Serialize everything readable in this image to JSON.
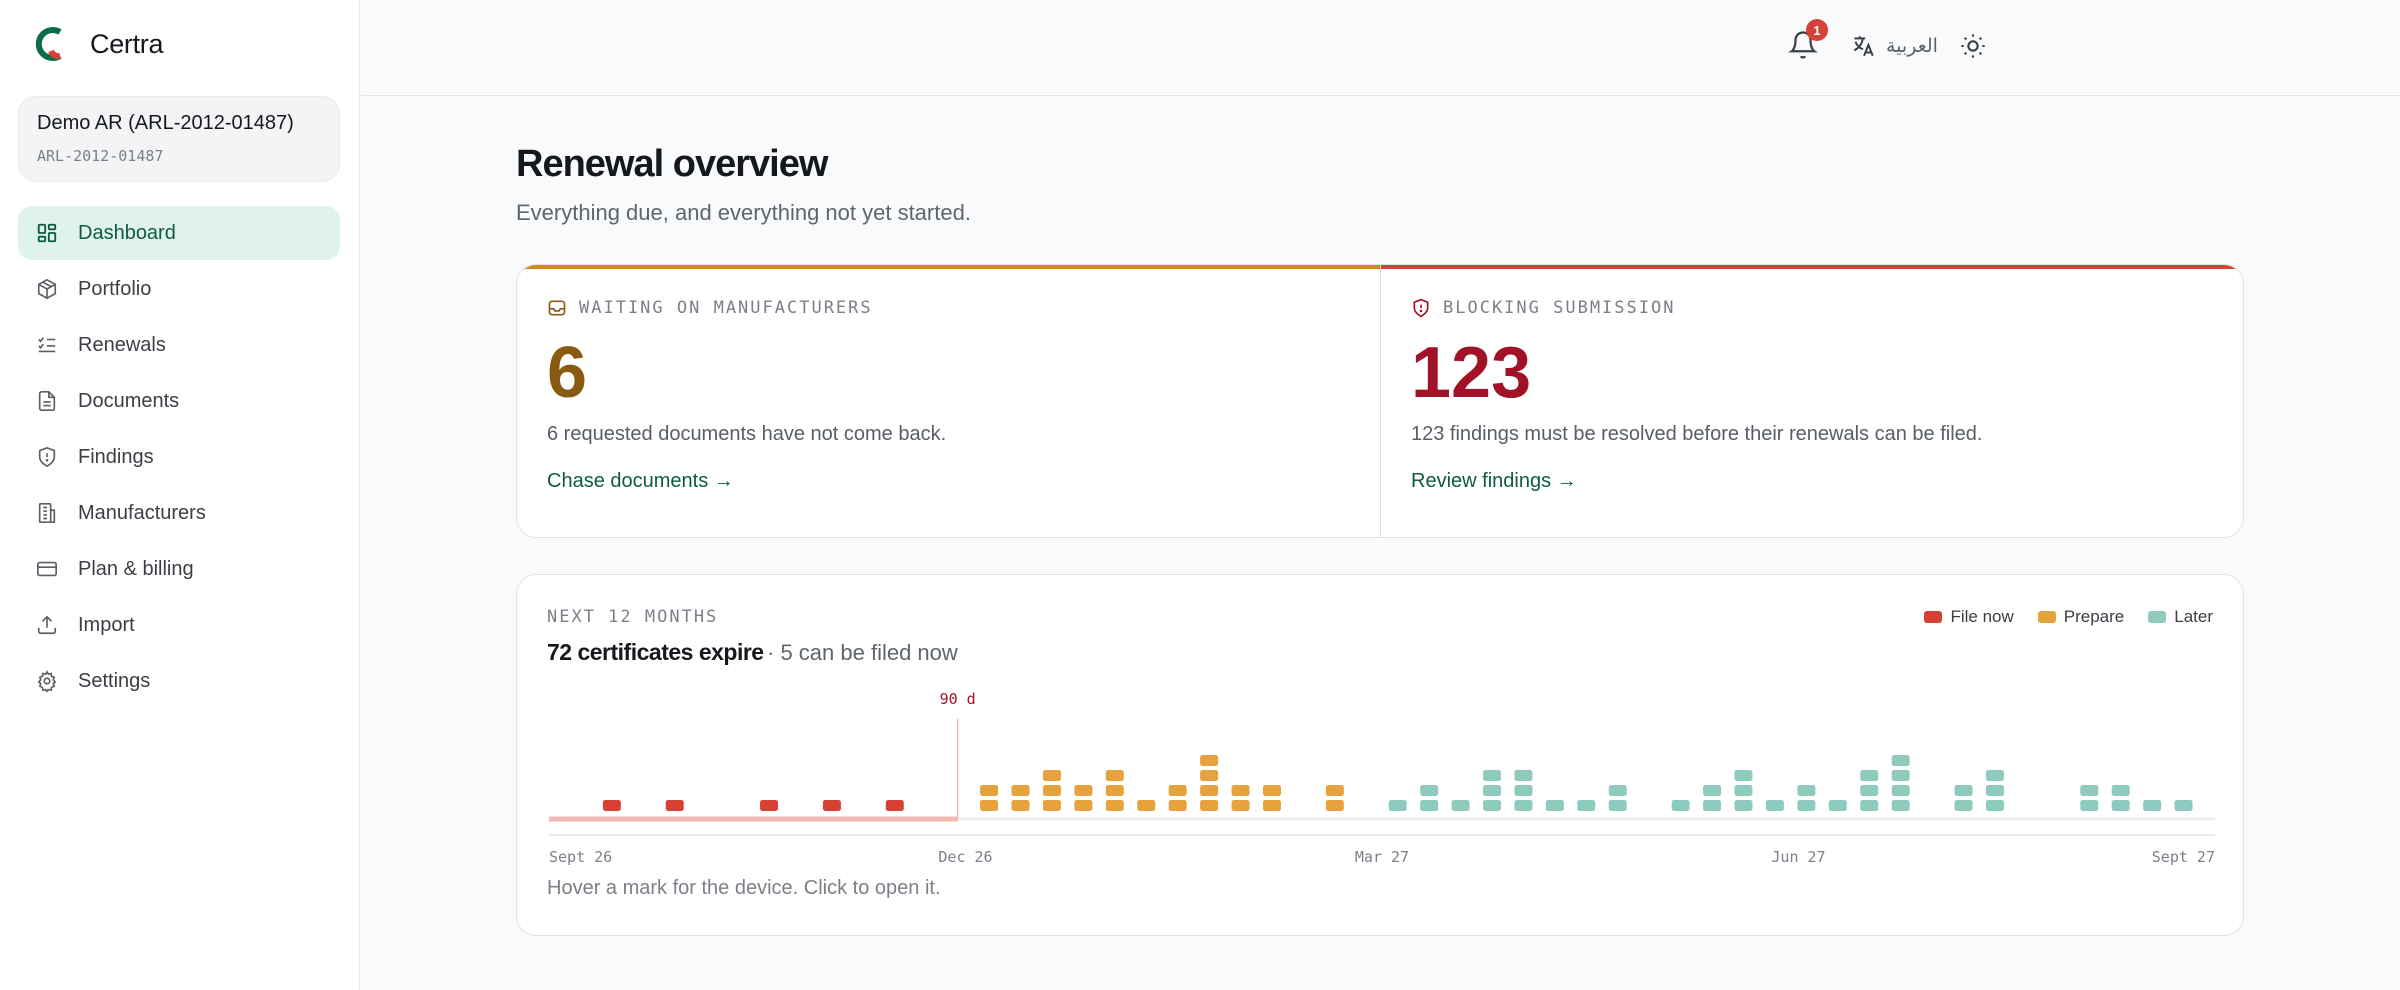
{
  "brand": {
    "name": "Certra"
  },
  "org": {
    "name": "Demo AR (ARL-2012-01487)",
    "code": "ARL-2012-01487"
  },
  "nav": [
    {
      "label": "Dashboard",
      "icon": "dashboard-icon",
      "active": true
    },
    {
      "label": "Portfolio",
      "icon": "box-icon"
    },
    {
      "label": "Renewals",
      "icon": "checklist-icon"
    },
    {
      "label": "Documents",
      "icon": "document-icon"
    },
    {
      "label": "Findings",
      "icon": "shield-icon"
    },
    {
      "label": "Manufacturers",
      "icon": "building-icon"
    },
    {
      "label": "Plan & billing",
      "icon": "credit-card-icon"
    },
    {
      "label": "Import",
      "icon": "upload-icon"
    },
    {
      "label": "Settings",
      "icon": "gear-icon"
    }
  ],
  "topbar": {
    "notifications_count": "1",
    "language_label": "العربية"
  },
  "page": {
    "title": "Renewal overview",
    "subtitle": "Everything due, and everything not yet started."
  },
  "kpis": {
    "waiting": {
      "label": "WAITING ON MANUFACTURERS",
      "value": "6",
      "description": "6 requested documents have not come back.",
      "link": "Chase documents →",
      "color": "#8a5a12",
      "bar_color": "#d4891c"
    },
    "blocking": {
      "label": "BLOCKING SUBMISSION",
      "value": "123",
      "description": "123 findings must be resolved before their renewals can be filed.",
      "link": "Review findings →",
      "color": "#a11226",
      "bar_color": "#d64136"
    }
  },
  "timeline": {
    "eyebrow": "NEXT 12 MONTHS",
    "title": "72 certificates expire",
    "subtitle": "· 5 can be filed now",
    "hint": "Hover a mark for the device. Click to open it.",
    "legend": [
      {
        "label": "File now",
        "color": "#d64136"
      },
      {
        "label": "Prepare",
        "color": "#e6a23c"
      },
      {
        "label": "Later",
        "color": "#8ecbbe"
      }
    ]
  },
  "chart_data": {
    "type": "bar",
    "title": "72 certificates expire",
    "x_axis_ticks": [
      "Sept 26",
      "Dec 26",
      "Mar 27",
      "Jun 27",
      "Sept 27"
    ],
    "threshold_label": "90 d",
    "series": [
      {
        "name": "File now",
        "x_weeks": [
          2,
          4,
          7,
          9,
          11
        ],
        "values": [
          1,
          1,
          1,
          1,
          1
        ]
      },
      {
        "name": "Prepare",
        "x_weeks": [
          14,
          15,
          16,
          17,
          18,
          19,
          20,
          21,
          22,
          23,
          25
        ],
        "values": [
          2,
          2,
          3,
          2,
          3,
          1,
          2,
          4,
          2,
          2,
          2
        ]
      },
      {
        "name": "Later",
        "x_weeks": [
          27,
          28,
          29,
          30,
          31,
          32,
          33,
          34,
          36,
          37,
          38,
          39,
          40,
          41,
          42,
          43,
          45,
          46,
          49,
          50,
          51,
          52
        ],
        "values": [
          1,
          2,
          1,
          3,
          3,
          1,
          1,
          2,
          1,
          2,
          3,
          1,
          2,
          1,
          3,
          4,
          2,
          3,
          2,
          2,
          1,
          1
        ]
      }
    ],
    "x_range_weeks": [
      0,
      53
    ]
  }
}
